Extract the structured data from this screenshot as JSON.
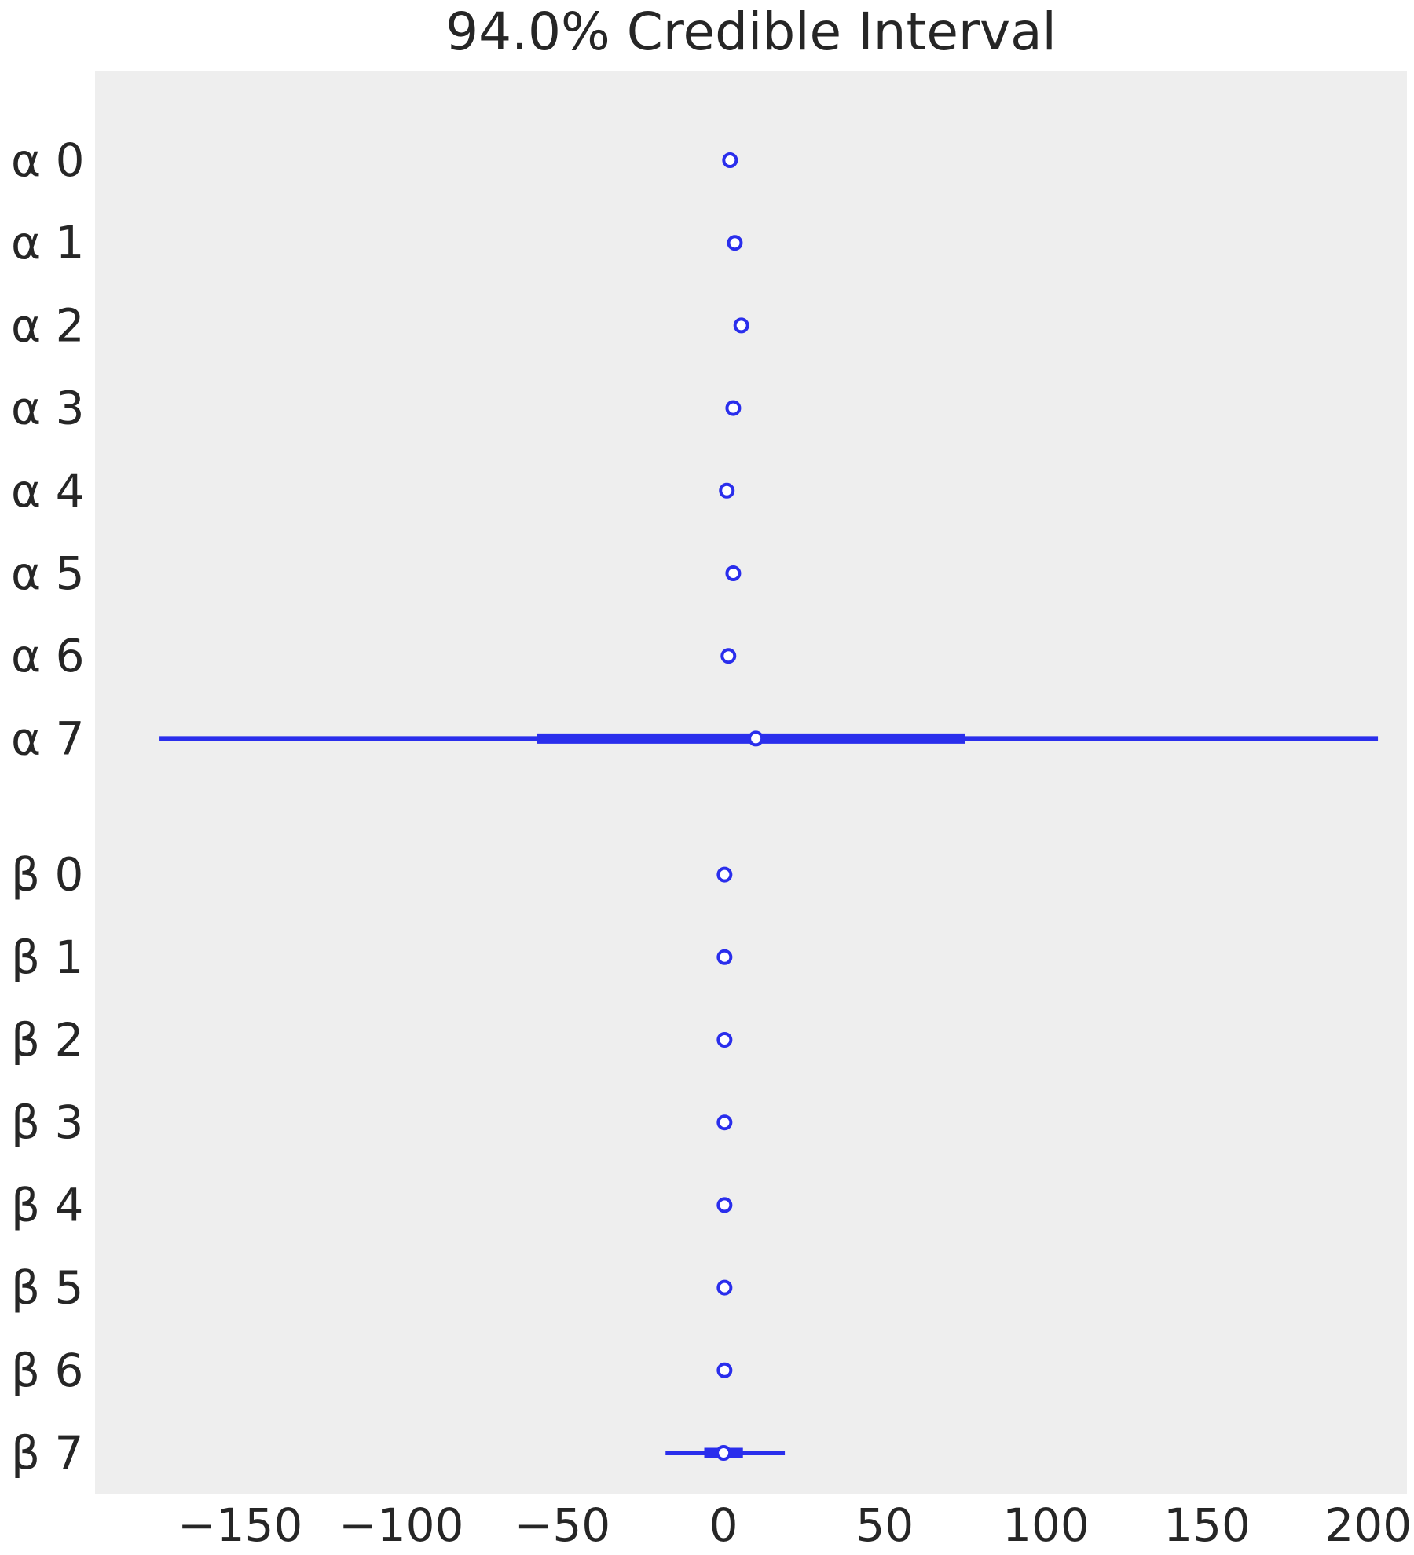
{
  "chart_data": {
    "type": "forest",
    "title": "94.0% Credible Interval",
    "xlabel": "",
    "ylabel": "",
    "xlim": [
      -195,
      212
    ],
    "x_ticks": [
      -150,
      -100,
      -50,
      0,
      50,
      100,
      150,
      200
    ],
    "x_tick_labels": [
      "−150",
      "−100",
      "−50",
      "0",
      "50",
      "100",
      "150",
      "200"
    ],
    "grid": false,
    "legend": "none",
    "colors": {
      "series": "#2a2eec",
      "background": "#eeeeee",
      "text": "#262626"
    },
    "groups": [
      {
        "name": "α",
        "rows": [
          {
            "label": "α 0",
            "median": 2.0
          },
          {
            "label": "α 1",
            "median": 3.5
          },
          {
            "label": "α 2",
            "median": 5.5
          },
          {
            "label": "α 3",
            "median": 3.0
          },
          {
            "label": "α 4",
            "median": 1.0
          },
          {
            "label": "α 5",
            "median": 3.0
          },
          {
            "label": "α 6",
            "median": 1.5
          },
          {
            "label": "α 7",
            "median": 10.0,
            "hdi_94": [
              -175,
              203
            ],
            "iqr": [
              -58,
              75
            ]
          }
        ]
      },
      {
        "name": "β",
        "rows": [
          {
            "label": "β 0",
            "median": 0.3
          },
          {
            "label": "β 1",
            "median": 0.3
          },
          {
            "label": "β 2",
            "median": 0.3
          },
          {
            "label": "β 3",
            "median": 0.3
          },
          {
            "label": "β 4",
            "median": 0.3
          },
          {
            "label": "β 5",
            "median": 0.3
          },
          {
            "label": "β 6",
            "median": 0.3
          },
          {
            "label": "β 7",
            "median": 0.0,
            "hdi_94": [
              -18,
              19
            ],
            "iqr": [
              -6,
              6
            ]
          }
        ]
      }
    ]
  }
}
